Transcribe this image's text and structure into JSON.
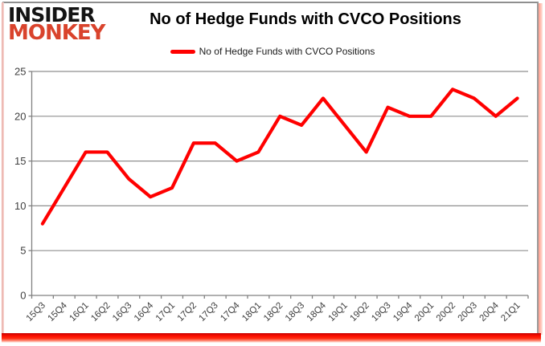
{
  "logo": {
    "line1": "INSIDER",
    "line2": "MONKEY",
    "line1_color": "#141414",
    "line2_color": "#d9432c"
  },
  "header": {
    "title": "No of Hedge Funds with CVCO Positions"
  },
  "legend": {
    "label": "No of Hedge Funds with CVCO Positions",
    "line_color": "#FF0000"
  },
  "chart_data": {
    "type": "line",
    "title": "No of Hedge Funds with CVCO Positions",
    "x": [
      "15Q3",
      "15Q4",
      "16Q1",
      "16Q2",
      "16Q3",
      "16Q4",
      "17Q1",
      "17Q2",
      "17Q3",
      "17Q4",
      "18Q1",
      "18Q2",
      "18Q3",
      "18Q4",
      "19Q1",
      "19Q2",
      "19Q3",
      "19Q4",
      "20Q1",
      "20Q2",
      "20Q3",
      "20Q4",
      "21Q1"
    ],
    "series": [
      {
        "name": "No of Hedge Funds with CVCO Positions",
        "values": [
          8,
          12,
          16,
          16,
          13,
          11,
          12,
          17,
          17,
          15,
          16,
          20,
          19,
          22,
          19,
          16,
          21,
          20,
          20,
          23,
          22,
          20,
          22
        ],
        "color": "#FF0000"
      }
    ],
    "ylim": [
      0,
      25
    ],
    "yticks": [
      0,
      5,
      10,
      15,
      20,
      25
    ],
    "grid": true,
    "legend_position": "top",
    "xlabel": "",
    "ylabel": ""
  },
  "colors": {
    "gridline": "#8f8f8f",
    "axis": "#808080",
    "tick_label": "#3f3f3f",
    "background": "#ffffff"
  }
}
